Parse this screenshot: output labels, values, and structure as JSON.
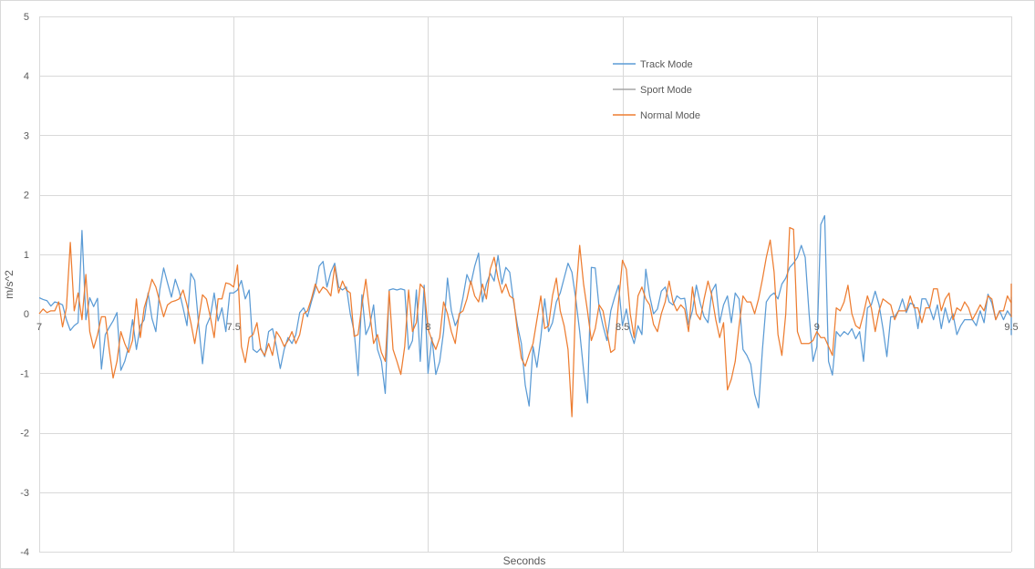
{
  "chart_data": {
    "type": "line",
    "title": "",
    "xlabel": "Seconds",
    "ylabel": "m/s^2",
    "xlim": [
      7,
      9.5
    ],
    "ylim": [
      -4,
      5
    ],
    "x_ticks": [
      7,
      7.5,
      8,
      8.5,
      9,
      9.5
    ],
    "x_tick_labels": [
      "7",
      "7.5",
      "8",
      "8.5",
      "9",
      "9.5"
    ],
    "y_ticks": [
      -4,
      -3,
      -2,
      -1,
      0,
      1,
      2,
      3,
      4,
      5
    ],
    "y_tick_labels": [
      "-4",
      "-3",
      "-2",
      "-1",
      "0",
      "1",
      "2",
      "3",
      "4",
      "5"
    ],
    "grid": true,
    "legend_position": "top-right",
    "x_start": 7,
    "x_step": 0.01,
    "colors": {
      "Track Mode": "#5b9bd5",
      "Sport Mode": "#a5a5a5",
      "Normal Mode": "#ed7d31"
    },
    "series": [
      {
        "name": "Track Mode",
        "values": [
          0.27,
          0.24,
          0.22,
          0.13,
          0.2,
          0.18,
          0.15,
          -0.1,
          -0.28,
          -0.2,
          -0.15,
          1.4,
          -0.1,
          0.27,
          0.12,
          0.26,
          -0.93,
          -0.35,
          -0.23,
          -0.12,
          0.02,
          -0.95,
          -0.8,
          -0.55,
          -0.1,
          -0.6,
          -0.2,
          -0.1,
          0.35,
          -0.08,
          -0.3,
          0.4,
          0.77,
          0.52,
          0.28,
          0.58,
          0.38,
          0.1,
          -0.2,
          0.68,
          0.56,
          -0.18,
          -0.84,
          -0.2,
          -0.05,
          0.35,
          -0.12,
          0.1,
          -0.3,
          0.35,
          0.35,
          0.4,
          0.56,
          0.25,
          0.4,
          -0.6,
          -0.65,
          -0.58,
          -0.72,
          -0.3,
          -0.25,
          -0.55,
          -0.92,
          -0.6,
          -0.4,
          -0.5,
          -0.35,
          0.02,
          0.1,
          -0.05,
          0.2,
          0.42,
          0.8,
          0.88,
          0.45,
          0.7,
          0.85,
          0.45,
          0.4,
          0.45,
          0.0,
          -0.3,
          -1.04,
          0.32,
          -0.35,
          -0.2,
          0.15,
          -0.6,
          -0.8,
          -1.34,
          0.4,
          0.42,
          0.4,
          0.42,
          0.4,
          -0.6,
          -0.45,
          0.4,
          -0.8,
          0.48,
          -1.0,
          -0.4,
          -1.02,
          -0.8,
          -0.3,
          0.6,
          0.05,
          -0.2,
          -0.05,
          0.28,
          0.66,
          0.5,
          0.8,
          1.02,
          0.2,
          0.5,
          0.68,
          0.55,
          0.98,
          0.5,
          0.78,
          0.7,
          0.2,
          -0.2,
          -0.5,
          -1.2,
          -1.55,
          -0.55,
          -0.9,
          -0.4,
          0.25,
          -0.3,
          -0.15,
          0.2,
          0.35,
          0.6,
          0.85,
          0.7,
          0.25,
          -0.3,
          -0.95,
          -1.5,
          0.78,
          0.77,
          0.1,
          -0.2,
          -0.45,
          0.05,
          0.28,
          0.48,
          -0.2,
          0.08,
          -0.3,
          -0.5,
          -0.2,
          -0.35,
          0.75,
          0.3,
          0.0,
          0.08,
          0.38,
          0.45,
          0.2,
          0.15,
          0.3,
          0.25,
          0.26,
          -0.18,
          0.05,
          0.48,
          0.18,
          -0.05,
          -0.15,
          0.38,
          0.5,
          -0.15,
          0.15,
          0.3,
          -0.15,
          0.35,
          0.25,
          -0.6,
          -0.7,
          -0.85,
          -1.35,
          -1.58,
          -0.6,
          0.2,
          0.3,
          0.35,
          0.25,
          0.5,
          0.6,
          0.78,
          0.85,
          0.95,
          1.15,
          0.95,
          0.0,
          -0.8,
          -0.55,
          1.5,
          1.65,
          -0.8,
          -1.03,
          -0.3,
          -0.38,
          -0.3,
          -0.35,
          -0.25,
          -0.42,
          -0.3,
          -0.8,
          0.1,
          0.15,
          0.38,
          0.15,
          -0.25,
          -0.72,
          -0.05,
          -0.05,
          0.05,
          0.25,
          0.02,
          0.18,
          0.15,
          -0.25,
          0.25,
          0.25,
          0.1,
          -0.1,
          0.15,
          -0.25,
          0.1,
          -0.15,
          0.0,
          -0.35,
          -0.2,
          -0.1,
          -0.1,
          -0.1,
          -0.2,
          0.05,
          -0.15,
          0.33,
          0.18,
          -0.1,
          0.05,
          -0.1,
          0.05,
          -0.05,
          -0.15,
          -0.1,
          0.1,
          -0.05,
          0.05,
          -0.05,
          -0.35,
          0.25,
          0.05,
          -0.25,
          0.25,
          -0.05,
          -0.15,
          0.28,
          0.05,
          -0.15,
          -0.1,
          -0.25,
          -0.35,
          0.05,
          0.08,
          -0.1,
          -0.05,
          0.1,
          -0.1
        ]
      },
      {
        "name": "Sport Mode",
        "values": []
      },
      {
        "name": "Normal Mode",
        "values": [
          0.0,
          0.08,
          0.02,
          0.05,
          0.05,
          0.2,
          -0.22,
          0.1,
          1.2,
          0.05,
          0.35,
          -0.1,
          0.66,
          -0.3,
          -0.58,
          -0.35,
          -0.05,
          -0.05,
          -0.6,
          -1.08,
          -0.8,
          -0.3,
          -0.5,
          -0.65,
          -0.45,
          0.25,
          -0.4,
          0.1,
          0.32,
          0.58,
          0.45,
          0.2,
          -0.05,
          0.15,
          0.2,
          0.22,
          0.25,
          0.4,
          0.15,
          -0.15,
          -0.5,
          -0.1,
          0.32,
          0.25,
          -0.05,
          -0.4,
          0.25,
          0.25,
          0.52,
          0.5,
          0.45,
          0.82,
          -0.55,
          -0.82,
          -0.4,
          -0.35,
          -0.15,
          -0.6,
          -0.7,
          -0.5,
          -0.7,
          -0.3,
          -0.4,
          -0.55,
          -0.45,
          -0.3,
          -0.5,
          -0.35,
          0.0,
          0.05,
          0.25,
          0.5,
          0.35,
          0.45,
          0.4,
          0.3,
          0.8,
          0.35,
          0.55,
          0.4,
          0.35,
          -0.38,
          -0.35,
          0.15,
          0.58,
          0.02,
          -0.5,
          -0.35,
          -0.65,
          -0.8,
          0.38,
          -0.6,
          -0.8,
          -1.02,
          -0.55,
          0.4,
          -0.3,
          -0.15,
          0.5,
          0.42,
          -0.25,
          -0.45,
          -0.6,
          -0.4,
          0.2,
          0.0,
          -0.3,
          -0.5,
          0.0,
          0.05,
          0.25,
          0.55,
          0.3,
          0.2,
          0.5,
          0.25,
          0.75,
          0.95,
          0.6,
          0.35,
          0.5,
          0.3,
          0.25,
          -0.3,
          -0.75,
          -0.88,
          -0.68,
          -0.5,
          -0.1,
          0.3,
          -0.25,
          -0.2,
          0.3,
          0.6,
          0.05,
          -0.2,
          -0.6,
          -1.73,
          0.3,
          1.15,
          0.5,
          0.05,
          -0.45,
          -0.25,
          0.15,
          0.05,
          -0.3,
          -0.65,
          -0.6,
          0.2,
          0.9,
          0.75,
          0.0,
          -0.4,
          0.3,
          0.45,
          0.25,
          0.15,
          -0.18,
          -0.3,
          0.0,
          0.2,
          0.55,
          0.2,
          0.05,
          0.15,
          0.08,
          -0.3,
          0.45,
          0.0,
          -0.1,
          0.25,
          0.55,
          0.3,
          -0.1,
          -0.4,
          -0.15,
          -1.28,
          -1.1,
          -0.8,
          -0.2,
          0.3,
          0.2,
          0.2,
          0.0,
          0.25,
          0.58,
          0.95,
          1.24,
          0.7,
          -0.35,
          -0.7,
          0.0,
          1.45,
          1.42,
          -0.3,
          -0.5,
          -0.5,
          -0.5,
          -0.45,
          -0.3,
          -0.4,
          -0.4,
          -0.55,
          -0.7,
          0.1,
          0.05,
          0.2,
          0.48,
          0.0,
          -0.2,
          -0.25,
          0.0,
          0.3,
          0.1,
          -0.3,
          0.05,
          0.25,
          0.2,
          0.15,
          -0.1,
          0.05,
          0.05,
          0.05,
          0.3,
          0.1,
          0.1,
          -0.15,
          0.1,
          0.1,
          0.42,
          0.42,
          0.05,
          0.25,
          0.35,
          -0.1,
          0.1,
          0.05,
          0.2,
          0.1,
          -0.1,
          0.02,
          0.15,
          0.05,
          0.3,
          0.25,
          -0.1,
          0.05,
          0.05,
          0.3,
          0.18,
          0.0,
          0.1,
          -0.05,
          0.1,
          0.2,
          0.3,
          0.35,
          0.02,
          0.5,
          0.5,
          0.4,
          0.35,
          0.02,
          0.1,
          0.05,
          0.15,
          0.1,
          0.0,
          0.2,
          0.0,
          -0.05,
          0.05
        ]
      }
    ]
  }
}
